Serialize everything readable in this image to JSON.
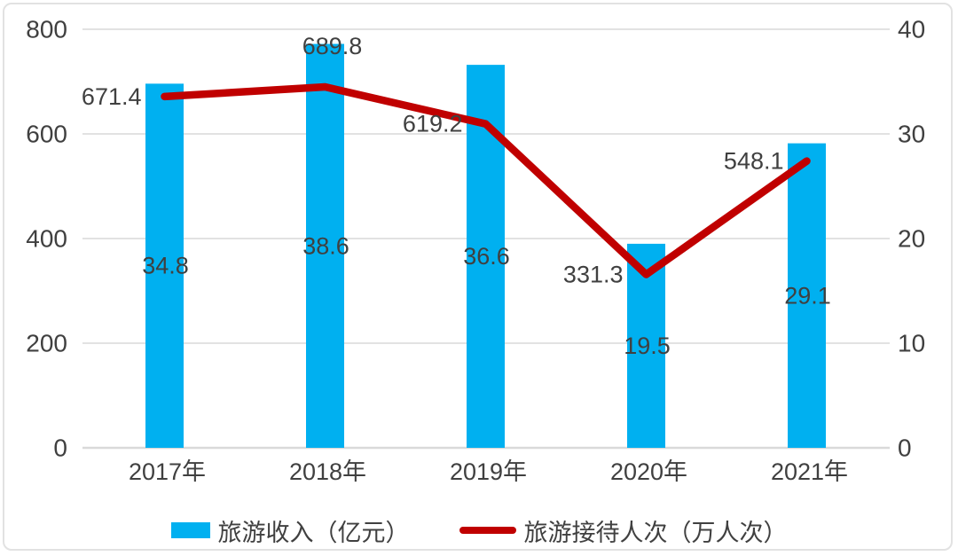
{
  "chart_data": {
    "type": "combo",
    "categories": [
      "2017年",
      "2018年",
      "2019年",
      "2020年",
      "2021年"
    ],
    "series": [
      {
        "name": "旅游收入（亿元）",
        "type": "bar",
        "axis": "right",
        "values": [
          34.8,
          38.6,
          36.6,
          19.5,
          29.1
        ],
        "color": "#00B0F0",
        "label_position": "inside-center"
      },
      {
        "name": "旅游接待人次（万人次）",
        "type": "line",
        "axis": "left",
        "values": [
          671.4,
          689.8,
          619.2,
          331.3,
          548.1
        ],
        "color": "#C00000",
        "label_placement": [
          "left",
          "above",
          "left",
          "left",
          "left"
        ]
      }
    ],
    "left_axis": {
      "min": 0,
      "max": 800,
      "ticks": [
        0,
        200,
        400,
        600,
        800
      ]
    },
    "right_axis": {
      "min": 0,
      "max": 40,
      "ticks": [
        0,
        10,
        20,
        30,
        40
      ]
    },
    "grid": true,
    "legend_position": "bottom",
    "title": ""
  },
  "legend": {
    "bar_label": "旅游收入（亿元）",
    "line_label": "旅游接待人次（万人次）"
  },
  "colors": {
    "bar": "#00B0F0",
    "line": "#C00000",
    "text": "#404040",
    "gridline": "#D9D9D9",
    "frame_border": "#E2E2E2"
  }
}
